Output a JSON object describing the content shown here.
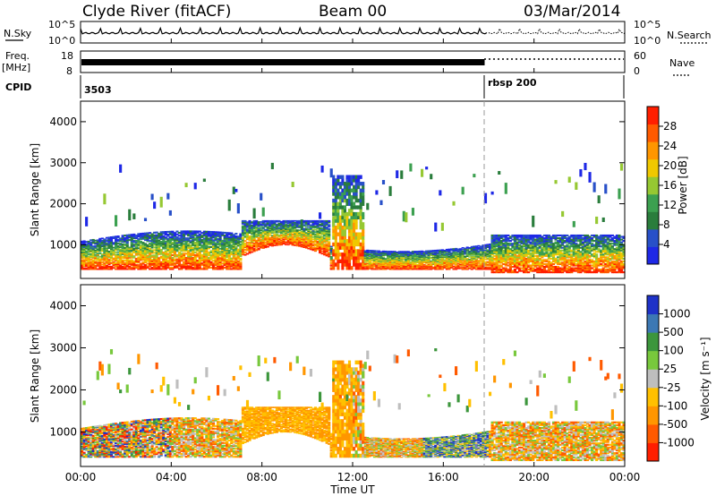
{
  "header": {
    "station": "Clyde River (fitACF)",
    "beam": "Beam 00",
    "date": "03/Mar/2014"
  },
  "side_labels": {
    "nsky": "N.Sky",
    "freq": "Freq.",
    "freq_unit": "[MHz]",
    "cpid": "CPID",
    "nsearch": "N.Search",
    "nave": "Nave"
  },
  "cpid_marks": [
    "3503",
    "rbsp 200"
  ],
  "colors": {
    "power": [
      "#1e28e6",
      "#2850c8",
      "#2a7d3c",
      "#3ca050",
      "#96c832",
      "#f0c800",
      "#ff9600",
      "#ff5a00",
      "#ff1e00"
    ],
    "velocity": [
      "#ff1e00",
      "#ff5a00",
      "#ff9600",
      "#ffc000",
      "#bebebe",
      "#78c83c",
      "#3c963c",
      "#3c78b4",
      "#1e32c8"
    ]
  },
  "chart_data": [
    {
      "type": "line",
      "name": "nsky-nsearch",
      "left_axis": {
        "label": "N.Sky",
        "ticks": [
          "10^5",
          "10^0"
        ]
      },
      "right_axis": {
        "label": "N.Search",
        "ticks": [
          "10^5",
          "10^0"
        ]
      },
      "x": [
        "00:00",
        "04:00",
        "08:00",
        "12:00",
        "16:00",
        "20:00",
        "00:00"
      ]
    },
    {
      "type": "line",
      "name": "frequency-nave",
      "left_axis": {
        "label": "Freq. [MHz]",
        "ticks": [
          "18",
          "8"
        ]
      },
      "right_axis": {
        "label": "Nave",
        "ticks": [
          "60",
          "0"
        ]
      },
      "x": [
        "00:00",
        "04:00",
        "08:00",
        "12:00",
        "16:00",
        "20:00",
        "00:00"
      ]
    },
    {
      "type": "heatmap",
      "title": "Power",
      "ylabel": "Slant Range [km]",
      "ylim": [
        180,
        4500
      ],
      "yticks": [
        1000,
        2000,
        3000,
        4000
      ],
      "xlabel": "Time UT",
      "xticks": [
        "00:00",
        "04:00",
        "08:00",
        "12:00",
        "16:00",
        "20:00",
        "00:00"
      ],
      "colorbar": {
        "label": "Power [dB]",
        "ticks": [
          "4",
          "8",
          "12",
          "16",
          "20",
          "24",
          "28"
        ],
        "range": [
          0,
          30
        ]
      }
    },
    {
      "type": "heatmap",
      "title": "Velocity",
      "ylabel": "Slant Range [km]",
      "ylim": [
        180,
        4500
      ],
      "yticks": [
        1000,
        2000,
        3000,
        4000
      ],
      "xlabel": "Time UT",
      "xticks": [
        "00:00",
        "04:00",
        "08:00",
        "12:00",
        "16:00",
        "20:00",
        "00:00"
      ],
      "colorbar": {
        "label": "Velocity [m s⁻¹]",
        "ticks": [
          "-1000",
          "-500",
          "-100",
          "-25",
          "25",
          "100",
          "500",
          "1000"
        ]
      }
    }
  ],
  "axis": {
    "xlabel": "Time UT",
    "ylabel": "Slant Range [km]",
    "xticks": [
      "00:00",
      "04:00",
      "08:00",
      "12:00",
      "16:00",
      "20:00",
      "00:00"
    ],
    "yticks": [
      "1000",
      "2000",
      "3000",
      "4000"
    ],
    "power_label": "Power [dB]",
    "velocity_label": "Velocity [m s⁻¹]"
  }
}
